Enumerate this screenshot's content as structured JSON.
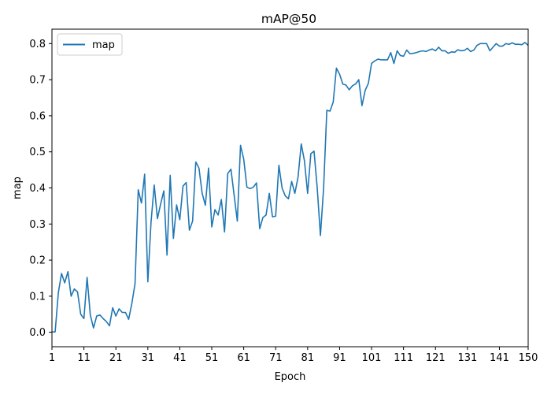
{
  "chart_data": {
    "type": "line",
    "title": "mAP@50",
    "xlabel": "Epoch",
    "ylabel": "map",
    "xlim": [
      1,
      150
    ],
    "ylim": [
      -0.04,
      0.84
    ],
    "xticks": [
      1,
      11,
      21,
      31,
      41,
      51,
      61,
      71,
      81,
      91,
      101,
      111,
      121,
      131,
      141,
      150
    ],
    "yticks": [
      0.0,
      0.1,
      0.2,
      0.3,
      0.4,
      0.5,
      0.6,
      0.7,
      0.8
    ],
    "ytick_labels": [
      "0.0",
      "0.1",
      "0.2",
      "0.3",
      "0.4",
      "0.5",
      "0.6",
      "0.7",
      "0.8"
    ],
    "legend": {
      "position": "top-left",
      "entries": [
        "map"
      ]
    },
    "grid": false,
    "series": [
      {
        "name": "map",
        "color": "#1f77b4",
        "x": [
          1,
          2,
          3,
          4,
          5,
          6,
          7,
          8,
          9,
          10,
          11,
          12,
          13,
          14,
          15,
          16,
          17,
          18,
          19,
          20,
          21,
          22,
          23,
          24,
          25,
          26,
          27,
          28,
          29,
          30,
          31,
          32,
          33,
          34,
          35,
          36,
          37,
          38,
          39,
          40,
          41,
          42,
          43,
          44,
          45,
          46,
          47,
          48,
          49,
          50,
          51,
          52,
          53,
          54,
          55,
          56,
          57,
          58,
          59,
          60,
          61,
          62,
          63,
          64,
          65,
          66,
          67,
          68,
          69,
          70,
          71,
          72,
          73,
          74,
          75,
          76,
          77,
          78,
          79,
          80,
          81,
          82,
          83,
          84,
          85,
          86,
          87,
          88,
          89,
          90,
          91,
          92,
          93,
          94,
          95,
          96,
          97,
          98,
          99,
          100,
          101,
          102,
          103,
          104,
          105,
          106,
          107,
          108,
          109,
          110,
          111,
          112,
          113,
          114,
          115,
          116,
          117,
          118,
          119,
          120,
          121,
          122,
          123,
          124,
          125,
          126,
          127,
          128,
          129,
          130,
          131,
          132,
          133,
          134,
          135,
          136,
          137,
          138,
          139,
          140,
          141,
          142,
          143,
          144,
          145,
          146,
          147,
          148,
          149,
          150
        ],
        "values": [
          0.001,
          0.001,
          0.11,
          0.163,
          0.137,
          0.168,
          0.1,
          0.12,
          0.112,
          0.05,
          0.038,
          0.152,
          0.048,
          0.012,
          0.045,
          0.048,
          0.038,
          0.03,
          0.018,
          0.068,
          0.045,
          0.065,
          0.055,
          0.055,
          0.036,
          0.08,
          0.135,
          0.395,
          0.358,
          0.438,
          0.14,
          0.305,
          0.408,
          0.315,
          0.355,
          0.392,
          0.214,
          0.435,
          0.26,
          0.353,
          0.312,
          0.405,
          0.415,
          0.283,
          0.308,
          0.472,
          0.455,
          0.385,
          0.352,
          0.455,
          0.292,
          0.34,
          0.325,
          0.368,
          0.278,
          0.44,
          0.452,
          0.38,
          0.308,
          0.518,
          0.48,
          0.402,
          0.398,
          0.402,
          0.414,
          0.287,
          0.318,
          0.325,
          0.385,
          0.32,
          0.322,
          0.463,
          0.4,
          0.378,
          0.37,
          0.418,
          0.385,
          0.43,
          0.522,
          0.475,
          0.385,
          0.495,
          0.502,
          0.4,
          0.268,
          0.4,
          0.615,
          0.613,
          0.638,
          0.732,
          0.715,
          0.688,
          0.685,
          0.672,
          0.683,
          0.688,
          0.7,
          0.628,
          0.67,
          0.69,
          0.745,
          0.752,
          0.757,
          0.755,
          0.755,
          0.755,
          0.775,
          0.745,
          0.78,
          0.767,
          0.765,
          0.782,
          0.772,
          0.773,
          0.775,
          0.778,
          0.78,
          0.778,
          0.782,
          0.785,
          0.78,
          0.79,
          0.78,
          0.78,
          0.773,
          0.777,
          0.776,
          0.783,
          0.78,
          0.781,
          0.787,
          0.778,
          0.782,
          0.795,
          0.8,
          0.8,
          0.8,
          0.78,
          0.79,
          0.8,
          0.793,
          0.793,
          0.8,
          0.798,
          0.802,
          0.798,
          0.798,
          0.797,
          0.803,
          0.795
        ]
      }
    ]
  }
}
